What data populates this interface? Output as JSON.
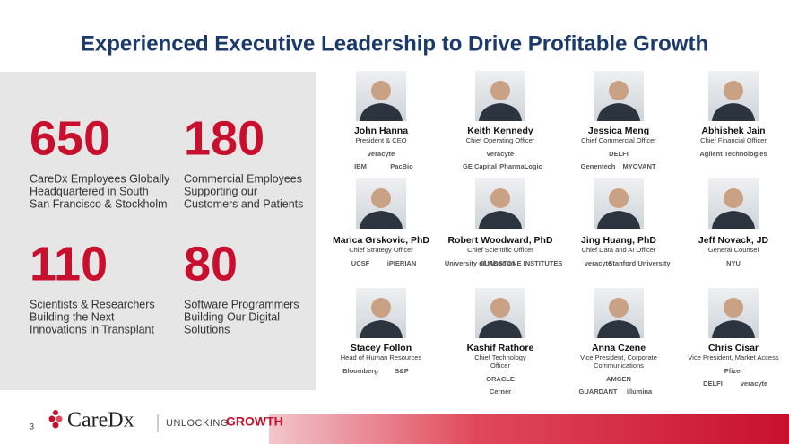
{
  "title": "Experienced Executive Leadership to Drive Profitable Growth",
  "stats": [
    {
      "number": 650,
      "label_lines": [
        "CareDx Employees Globally",
        "Headquartered in South",
        "San Francisco & Stockholm"
      ]
    },
    {
      "number": 180,
      "label_lines": [
        "Commercial Employees",
        "Supporting our",
        "Customers and Patients"
      ]
    },
    {
      "number": 110,
      "label_lines": [
        "Scientists & Researchers",
        "Building the Next",
        "Innovations in Transplant"
      ]
    },
    {
      "number": 80,
      "label_lines": [
        "Software Programmers",
        "Building Our Digital",
        "Solutions"
      ]
    }
  ],
  "executives": [
    {
      "name": "John Hanna",
      "role_lines": [
        "President & CEO"
      ],
      "affiliations": [
        [
          "veracyte"
        ],
        [
          "IBM",
          "PacBio"
        ]
      ]
    },
    {
      "name": "Keith Kennedy",
      "role_lines": [
        "Chief Operating Officer"
      ],
      "affiliations": [
        [
          "veracyte"
        ],
        [
          "GE Capital",
          "PharmaLogic"
        ]
      ]
    },
    {
      "name": "Jessica Meng",
      "role_lines": [
        "Chief Commercial Officer"
      ],
      "affiliations": [
        [
          "DELFI"
        ],
        [
          "Genentech",
          "MYOVANT"
        ]
      ]
    },
    {
      "name": "Abhishek Jain",
      "role_lines": [
        "Chief Financial Officer"
      ],
      "affiliations": [
        [
          "Agilent Technologies"
        ]
      ]
    },
    {
      "name": "Marica Grskovic, PhD",
      "role_lines": [
        "Chief Strategy Officer"
      ],
      "affiliations": [
        [
          "UCSF",
          "iPIERIAN"
        ]
      ]
    },
    {
      "name": "Robert Woodward, PhD",
      "role_lines": [
        "Chief Scientific Officer"
      ],
      "affiliations": [
        [
          "University of Missouri",
          "GLADSTONE INSTITUTES"
        ]
      ]
    },
    {
      "name": "Jing Huang, PhD",
      "role_lines": [
        "Chief Data and AI Officer"
      ],
      "affiliations": [
        [
          "veracyte",
          "Stanford University"
        ]
      ]
    },
    {
      "name": "Jeff Novack, JD",
      "role_lines": [
        "General Counsel"
      ],
      "affiliations": [
        [
          "NYU"
        ]
      ]
    },
    {
      "name": "Stacey Follon",
      "role_lines": [
        "Head of Human Resources"
      ],
      "affiliations": [
        [
          "Bloomberg",
          "S&P"
        ]
      ]
    },
    {
      "name": "Kashif Rathore",
      "role_lines": [
        "Chief Technology",
        "Officer"
      ],
      "affiliations": [
        [
          "ORACLE"
        ],
        [
          "Cerner"
        ]
      ]
    },
    {
      "name": "Anna Czene",
      "role_lines": [
        "Vice President, Corporate",
        "Communications"
      ],
      "affiliations": [
        [
          "AMGEN"
        ],
        [
          "GUARDANT",
          "illumina"
        ]
      ]
    },
    {
      "name": "Chris Cisar",
      "role_lines": [
        "Vice President, Market Access"
      ],
      "affiliations": [
        [
          "Pfizer"
        ],
        [
          "DELFI",
          "veracyte"
        ]
      ]
    }
  ],
  "footer": {
    "page_number": "3",
    "brand": "CareDx",
    "tagline_prefix": "UNLOCKING",
    "tagline_emphasis": "GROWTH"
  }
}
